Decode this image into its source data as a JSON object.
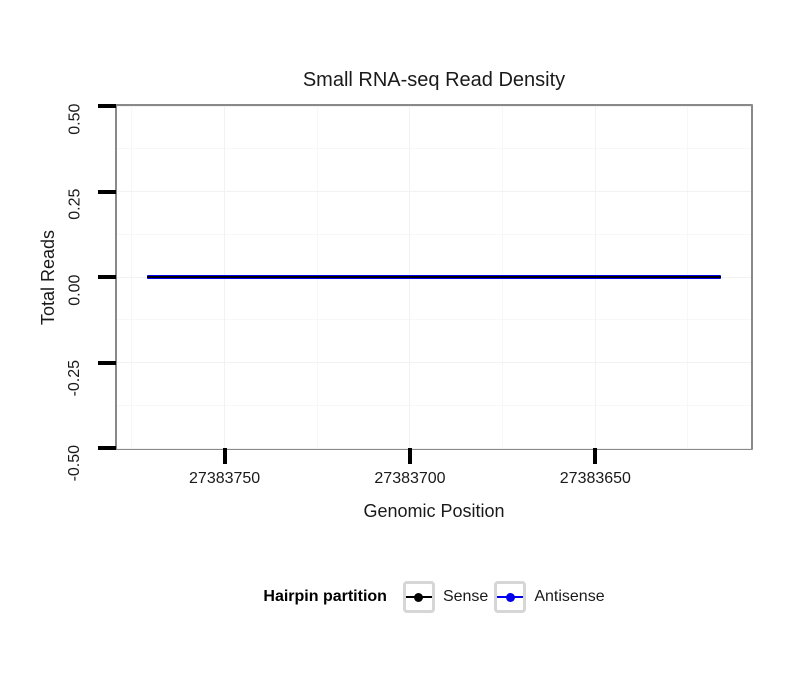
{
  "chart_data": {
    "type": "line",
    "title": "Small RNA-seq Read Density",
    "xlabel": "Genomic Position",
    "ylabel": "Total Reads",
    "x_axis": {
      "reversed": true,
      "lim": [
        27383779,
        27383608
      ],
      "ticks": [
        27383750,
        27383700,
        27383650
      ],
      "tick_labels": [
        "27383750",
        "27383700",
        "27383650"
      ],
      "minor_ticks": [
        27383775,
        27383725,
        27383675,
        27383625
      ]
    },
    "y_axis": {
      "lim": [
        -0.5,
        0.5
      ],
      "ticks": [
        0.5,
        0.25,
        0,
        -0.25,
        -0.5
      ],
      "tick_labels": [
        "0.50",
        "0.25",
        "0.00",
        "-0.25",
        "-0.50"
      ],
      "minor_ticks": [
        0.375,
        0.125,
        -0.125,
        -0.375
      ]
    },
    "grid": {
      "on": true,
      "major_color": "#f2f2f2",
      "minor_color": "#f7f7f7",
      "panel_border_color": "#898989",
      "panel_background": "#ffffff",
      "tick_color": "#000000"
    },
    "series": [
      {
        "name": "Antisense",
        "color": "#0000ee",
        "x": [
          27383771,
          27383616
        ],
        "y": [
          0,
          0
        ],
        "line_width": 4
      },
      {
        "name": "Sense",
        "color": "#000000",
        "x": [
          27383771,
          27383616
        ],
        "y": [
          0,
          0
        ],
        "line_width": 2
      }
    ],
    "legend": {
      "title": "Hairpin partition",
      "position": "bottom",
      "entries": [
        {
          "label": "Sense",
          "color": "#000000"
        },
        {
          "label": "Antisense",
          "color": "#0000ee"
        }
      ]
    }
  }
}
